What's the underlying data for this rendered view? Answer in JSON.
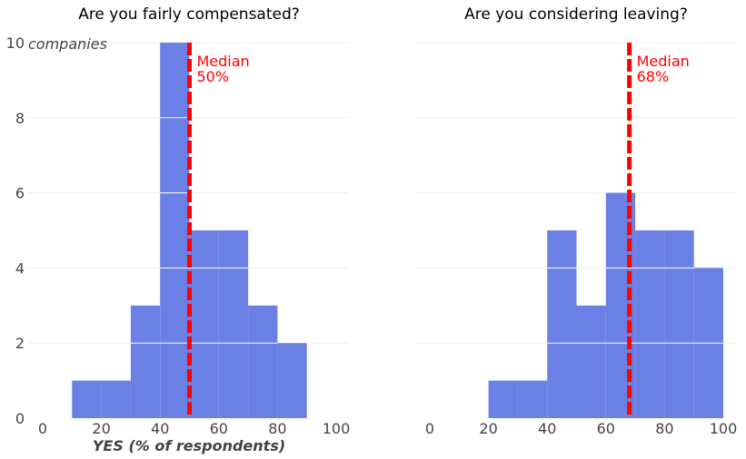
{
  "chart_data": [
    {
      "type": "histogram",
      "title": "Are you fairly compensated?",
      "xlabel": "YES (% of respondents)",
      "ylabel_unit": "companies",
      "xlim": [
        0,
        100
      ],
      "ylim": [
        0,
        10
      ],
      "xticks": [
        "0",
        "20",
        "40",
        "60",
        "80",
        "100"
      ],
      "yticks": [
        "0",
        "2",
        "4",
        "6",
        "8",
        "10"
      ],
      "bins": [
        {
          "x0": 10,
          "x1": 20,
          "count": 1
        },
        {
          "x0": 20,
          "x1": 30,
          "count": 1
        },
        {
          "x0": 30,
          "x1": 40,
          "count": 3
        },
        {
          "x0": 40,
          "x1": 50,
          "count": 10
        },
        {
          "x0": 50,
          "x1": 60,
          "count": 5
        },
        {
          "x0": 60,
          "x1": 70,
          "count": 5
        },
        {
          "x0": 70,
          "x1": 80,
          "count": 3
        },
        {
          "x0": 80,
          "x1": 90,
          "count": 2
        }
      ],
      "median": 50,
      "median_label": "Median",
      "median_value_label": "50%",
      "bar_color": "#6b80e5",
      "median_color": "#ff0000",
      "grid": true
    },
    {
      "type": "histogram",
      "title": "Are you considering leaving?",
      "xlabel": "",
      "xlim": [
        0,
        100
      ],
      "ylim": [
        0,
        10
      ],
      "xticks": [
        "0",
        "20",
        "40",
        "60",
        "80",
        "100"
      ],
      "yticks": [],
      "bins": [
        {
          "x0": 20,
          "x1": 30,
          "count": 1
        },
        {
          "x0": 30,
          "x1": 40,
          "count": 1
        },
        {
          "x0": 40,
          "x1": 50,
          "count": 5
        },
        {
          "x0": 50,
          "x1": 60,
          "count": 3
        },
        {
          "x0": 60,
          "x1": 70,
          "count": 6
        },
        {
          "x0": 70,
          "x1": 80,
          "count": 5
        },
        {
          "x0": 80,
          "x1": 90,
          "count": 5
        },
        {
          "x0": 90,
          "x1": 100,
          "count": 4
        }
      ],
      "median": 68,
      "median_label": "Median",
      "median_value_label": "68%",
      "bar_color": "#6b80e5",
      "median_color": "#ff0000",
      "grid": true
    }
  ]
}
